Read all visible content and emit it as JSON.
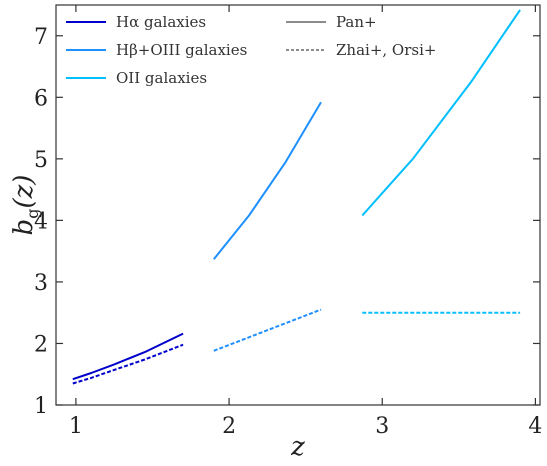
{
  "chart_data": {
    "type": "line",
    "xlabel": "z",
    "ylabel_main": "b",
    "ylabel_sub": "g",
    "ylabel_arg": "(z)",
    "xlim": [
      0.87,
      4.03
    ],
    "ylim": [
      1,
      7.5
    ],
    "xticks": [
      1,
      2,
      3,
      4
    ],
    "yticks": [
      1,
      2,
      3,
      4,
      5,
      6,
      7
    ],
    "legend_placement": "top-left",
    "grid": false,
    "colors": {
      "halpha": "#0000cc",
      "hbeta": "#1e90ff",
      "oii": "#00bfff",
      "style_ref": "#666666"
    },
    "series": [
      {
        "name": "Hα galaxies",
        "color_key": "halpha",
        "dash": "solid",
        "x": [
          0.98,
          1.1,
          1.25,
          1.45,
          1.7
        ],
        "y": [
          1.42,
          1.52,
          1.66,
          1.86,
          2.16
        ]
      },
      {
        "name": "",
        "color_key": "halpha",
        "dash": "dashed",
        "x": [
          0.98,
          1.1,
          1.25,
          1.45,
          1.7
        ],
        "y": [
          1.35,
          1.44,
          1.57,
          1.74,
          1.98
        ]
      },
      {
        "name": "Hβ+OIII galaxies",
        "color_key": "hbeta",
        "dash": "solid",
        "x": [
          1.9,
          2.13,
          2.37,
          2.6
        ],
        "y": [
          3.37,
          4.08,
          4.95,
          5.92
        ]
      },
      {
        "name": "",
        "color_key": "hbeta",
        "dash": "dashed",
        "x": [
          1.9,
          2.6
        ],
        "y": [
          1.88,
          2.55
        ]
      },
      {
        "name": "OII galaxies",
        "color_key": "oii",
        "dash": "solid",
        "x": [
          2.87,
          3.2,
          3.58,
          3.9
        ],
        "y": [
          4.08,
          5.0,
          6.25,
          7.42
        ]
      },
      {
        "name": "",
        "color_key": "oii",
        "dash": "dashed",
        "x": [
          2.87,
          3.9
        ],
        "y": [
          2.5,
          2.5
        ]
      }
    ],
    "legend": [
      {
        "label": "Hα galaxies",
        "color_key": "halpha",
        "dash": "solid",
        "column": 0,
        "row": 0
      },
      {
        "label": "Hβ+OIII galaxies",
        "color_key": "hbeta",
        "dash": "solid",
        "column": 0,
        "row": 1
      },
      {
        "label": "OII galaxies",
        "color_key": "oii",
        "dash": "solid",
        "column": 0,
        "row": 2
      },
      {
        "label": "Pan+",
        "color_key": "style_ref",
        "dash": "solid",
        "column": 1,
        "row": 0
      },
      {
        "label": "Zhai+, Orsi+",
        "color_key": "style_ref",
        "dash": "dashed",
        "column": 1,
        "row": 1
      }
    ]
  }
}
